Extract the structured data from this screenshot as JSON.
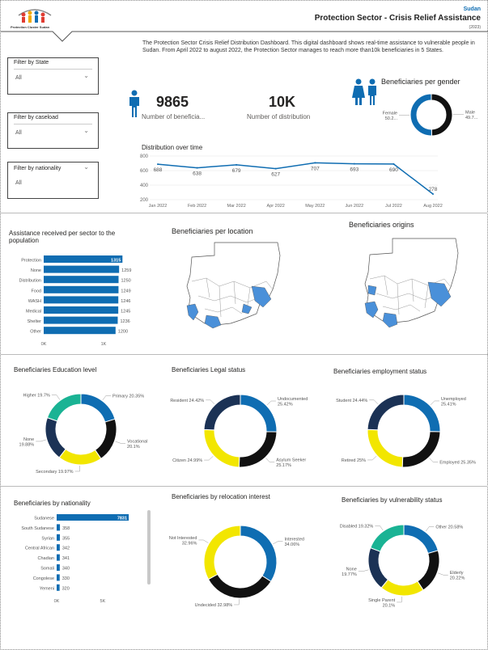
{
  "header": {
    "logo_caption": "Protection Cluster Sudan",
    "country": "Sudan",
    "title": "Protection Sector - Crisis Relief Assistance",
    "year": "(2023)"
  },
  "intro": "The Protection Sector Crisis Relief Distribution Dashboard. This digital dashboard shows real-time assistance to vulnerable people in Sudan. From April 2022 to august 2022, the Protection Sector manages to reach more than10k beneficiaries in 5 States.",
  "filters": [
    {
      "label": "Filter by State",
      "value": "All"
    },
    {
      "label": "Filter by caseload",
      "value": "All"
    },
    {
      "label": "Filter by nationality",
      "value": "All"
    }
  ],
  "kpis": {
    "beneficiaries_value": "9865",
    "beneficiaries_label": "Number of beneficia...",
    "distribution_value": "10K",
    "distribution_label": "Number of distribution"
  },
  "colors": {
    "blue": "#0f6db2",
    "black": "#111111",
    "yellow": "#f2e600",
    "navy": "#1b3255",
    "teal": "#1ab394",
    "map_highlight": "#4a90d9"
  },
  "icons": [
    "person-icon",
    "couple-icon",
    "chevron-down-icon"
  ],
  "chart_data": [
    {
      "id": "gender",
      "type": "pie",
      "title": "Beneficiaries per gender",
      "labels": [
        "Male",
        "Female"
      ],
      "label_texts": [
        "Male\n49.7...",
        "Female\n50.2..."
      ],
      "values": [
        49.7,
        50.2
      ],
      "colors": [
        "#111111",
        "#0f6db2"
      ]
    },
    {
      "id": "timeline",
      "type": "line",
      "title": "Distribution over time",
      "categories": [
        "Jan 2022",
        "Feb 2022",
        "Mar 2022",
        "Apr 2022",
        "May 2022",
        "Jun 2022",
        "Jul 2022",
        "Aug 2022"
      ],
      "values": [
        688,
        638,
        679,
        627,
        707,
        693,
        690,
        278
      ],
      "ylim": [
        200,
        800
      ],
      "yticks": [
        200,
        400,
        600,
        800
      ],
      "grid": true
    },
    {
      "id": "sector",
      "type": "bar",
      "orientation": "horizontal",
      "title": "Assistance received per sector to the population",
      "categories": [
        "Protection",
        "None",
        "Distribution",
        "Food",
        "WASH",
        "Medical",
        "Shelter",
        "Other"
      ],
      "values": [
        1315,
        1259,
        1250,
        1249,
        1246,
        1245,
        1236,
        1200
      ],
      "value_labels": [
        "1315",
        "1259",
        "1250",
        "1249",
        "1246",
        "1245",
        "1236",
        "1200"
      ],
      "xlim": [
        0,
        1500
      ],
      "xticks": [
        0,
        1000
      ],
      "xtick_labels": [
        "0K",
        "1K"
      ]
    },
    {
      "id": "nationality",
      "type": "bar",
      "orientation": "horizontal",
      "title": "Beneficiaries by nationality",
      "categories": [
        "Sudanese",
        "South Sudanese",
        "Syrian",
        "Central African",
        "Chadian",
        "Somali",
        "Congolese",
        "Yemeni"
      ],
      "values": [
        7831,
        358,
        355,
        342,
        341,
        340,
        330,
        320
      ],
      "value_labels": [
        "7831",
        "358",
        "355",
        "342",
        "341",
        "340",
        "330",
        "320"
      ],
      "xlim": [
        0,
        8000
      ],
      "xticks": [
        0,
        5000
      ],
      "xtick_labels": [
        "0K",
        "5K"
      ]
    },
    {
      "id": "education",
      "type": "pie",
      "title": "Beneficiaries Education level",
      "labels": [
        "Primary",
        "Vocational",
        "Secondary",
        "None",
        "Higher"
      ],
      "label_texts": [
        "Primary 20.35%",
        "Vocational\n20.1%",
        "Secondary 19.97%",
        "None\n19.88%",
        "Higher 19.7%"
      ],
      "values": [
        20.35,
        20.1,
        19.97,
        19.88,
        19.7
      ],
      "colors": [
        "#0f6db2",
        "#111111",
        "#f2e600",
        "#1b3255",
        "#1ab394"
      ]
    },
    {
      "id": "legal",
      "type": "pie",
      "title": "Beneficiaries Legal status",
      "labels": [
        "Undocumented",
        "Asylum Seeker",
        "Citizen",
        "Resident"
      ],
      "label_texts": [
        "Undocumented\n25.42%",
        "Asylum Seeker\n25.17%",
        "Citizen 24.99%",
        "Resident 24.42%"
      ],
      "values": [
        25.42,
        25.17,
        24.99,
        24.42
      ],
      "colors": [
        "#0f6db2",
        "#111111",
        "#f2e600",
        "#1b3255"
      ]
    },
    {
      "id": "employment",
      "type": "pie",
      "title": "Beneficiaries employment status",
      "labels": [
        "Unemployed",
        "Employed",
        "Retired",
        "Student"
      ],
      "label_texts": [
        "Unemployed\n25.41%",
        "Employed 25.35%",
        "Retired 25%",
        "Student 24.44%"
      ],
      "values": [
        25.41,
        25.35,
        25.0,
        24.44
      ],
      "colors": [
        "#0f6db2",
        "#111111",
        "#f2e600",
        "#1b3255"
      ]
    },
    {
      "id": "relocation",
      "type": "pie",
      "title": "Beneficiaries by relocation interest",
      "labels": [
        "Interested",
        "Undecided",
        "Not Interested"
      ],
      "label_texts": [
        "Interested\n34.06%",
        "Undecided 32.98%",
        "Not Interested\n32.96%"
      ],
      "values": [
        34.06,
        32.98,
        32.96
      ],
      "colors": [
        "#0f6db2",
        "#111111",
        "#f2e600"
      ]
    },
    {
      "id": "vulnerability",
      "type": "pie",
      "title": "Beneficiaries by vulnerability status",
      "labels": [
        "Other",
        "Elderly",
        "Single Parent",
        "None",
        "Disabled"
      ],
      "label_texts": [
        "Other 20.58%",
        "Elderly\n20.22%",
        "Single Parent\n20.1%",
        "None\n19.77%",
        "Disabled 19.32%"
      ],
      "values": [
        20.58,
        20.22,
        20.1,
        19.77,
        19.32
      ],
      "colors": [
        "#0f6db2",
        "#111111",
        "#f2e600",
        "#1b3255",
        "#1ab394"
      ]
    }
  ],
  "maps": {
    "location_title": "Beneficiaries per location",
    "origins_title": "Beneficiaries origins"
  }
}
